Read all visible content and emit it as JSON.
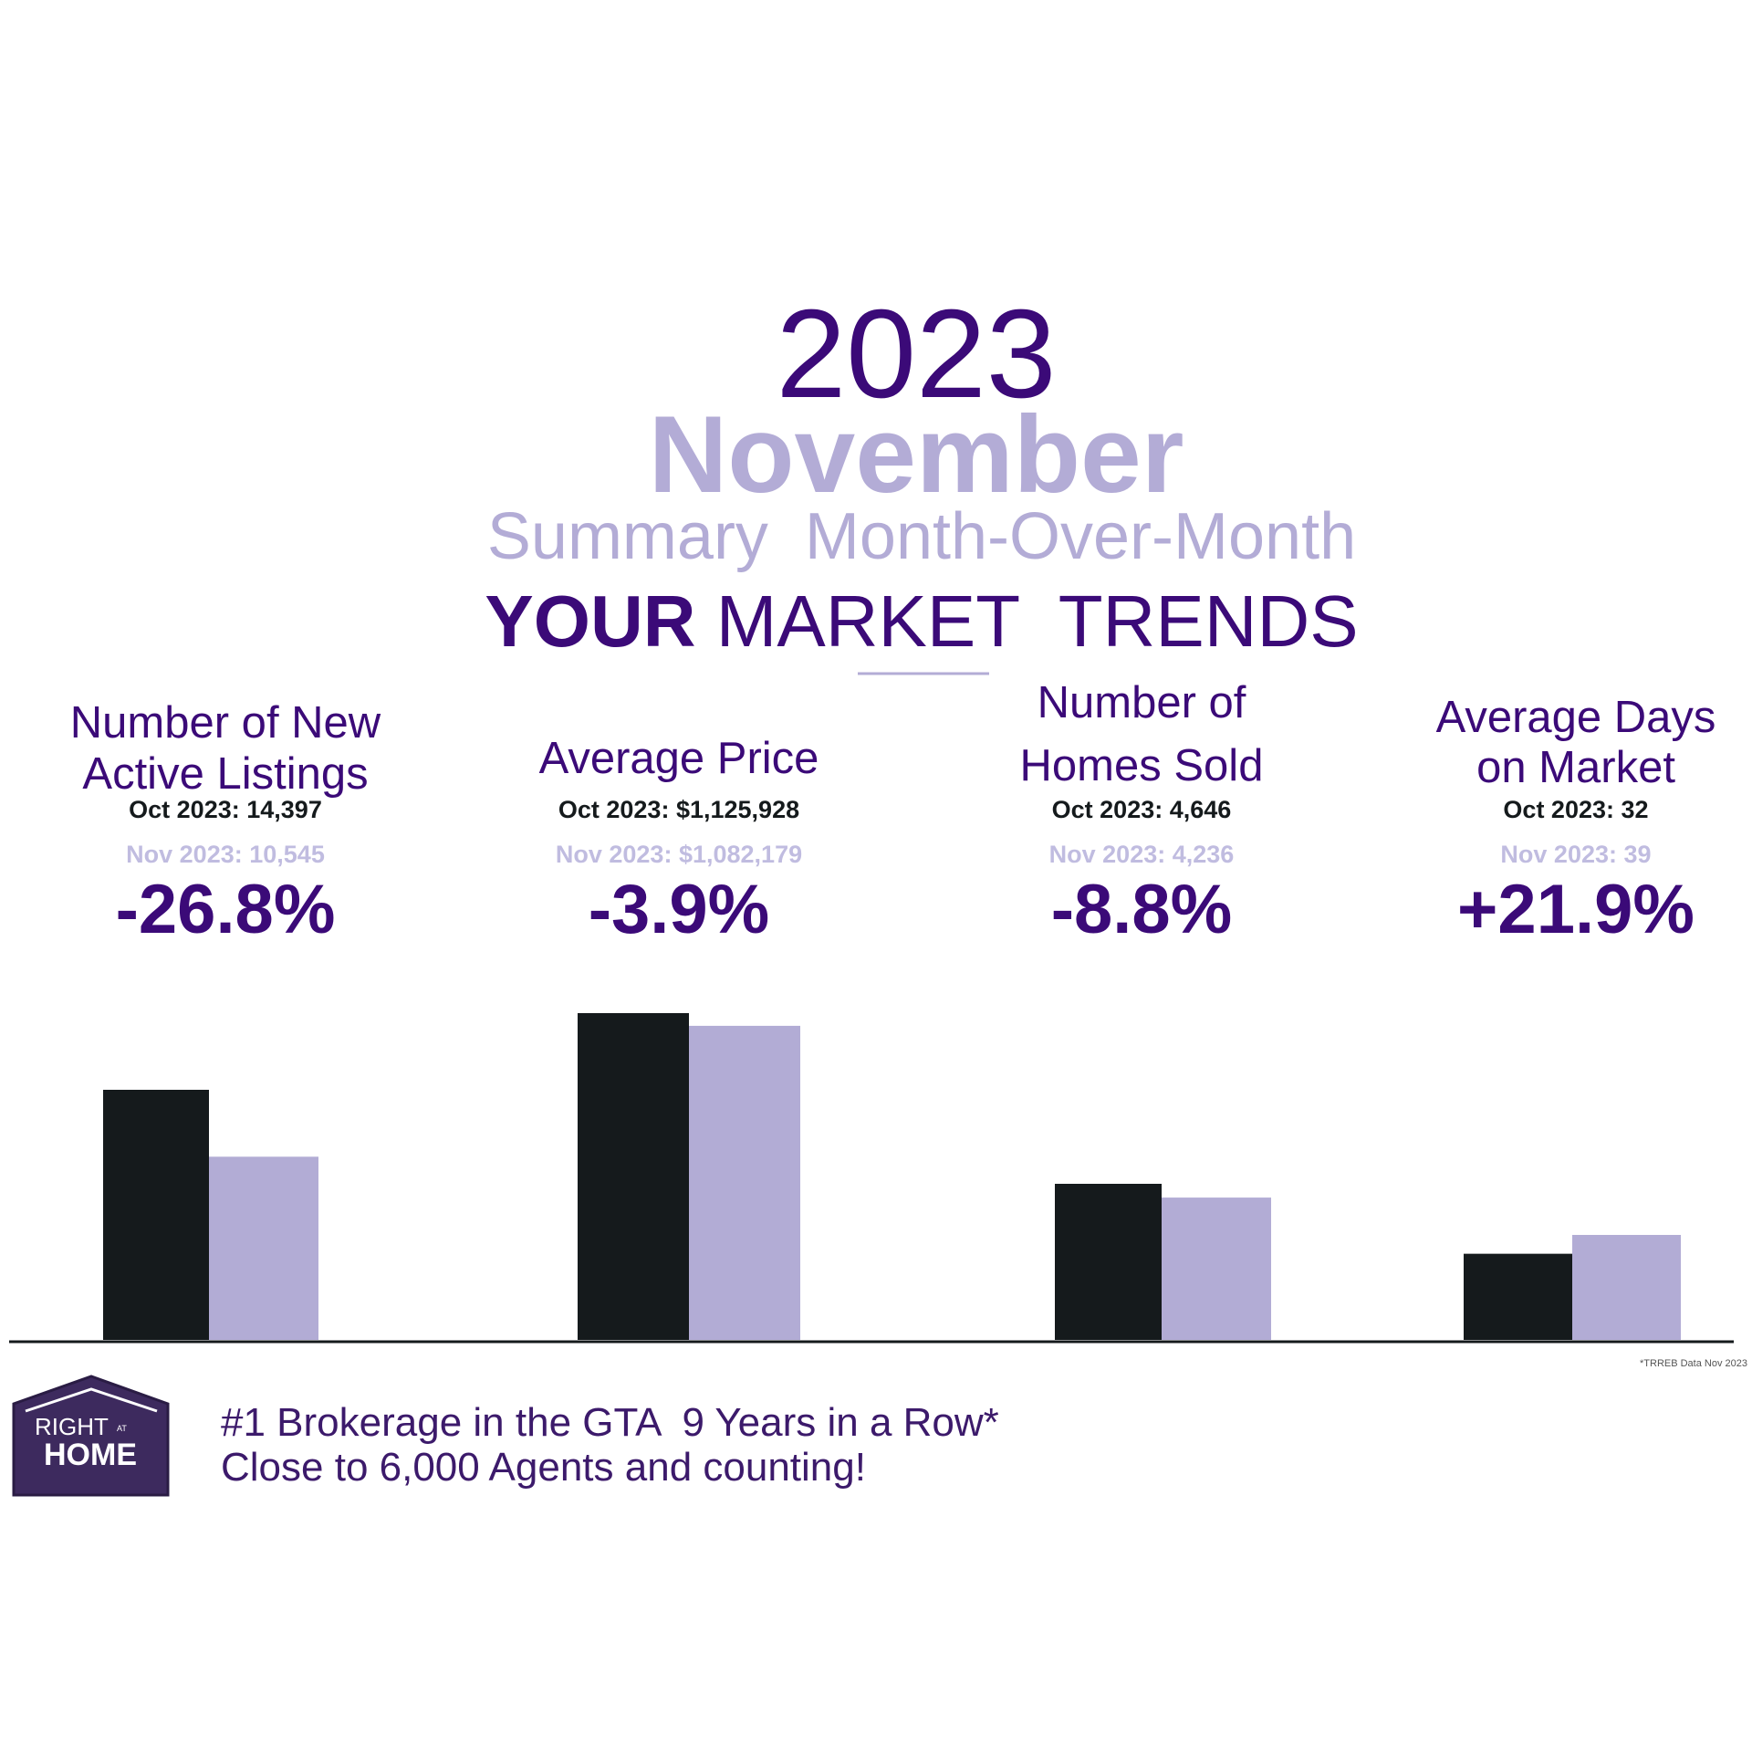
{
  "header": {
    "year": "2023",
    "month": "November",
    "subtitle": "Summary  Month-Over-Month",
    "title_bold": "YOUR",
    "title_rest": "MARKET  TRENDS"
  },
  "metrics": [
    {
      "title": [
        "Number of New",
        "Active Listings"
      ],
      "oct": {
        "label": "Oct 2023:",
        "value": 14397,
        "value_label": "14,397"
      },
      "nov": {
        "label": "Nov 2023:",
        "value": 10545,
        "value_label": "10,545"
      },
      "change": "-26.8%"
    },
    {
      "title": [
        "Average Price"
      ],
      "oct": {
        "label": "Oct 2023:",
        "value": 1125928,
        "value_label": "$1,125,928"
      },
      "nov": {
        "label": "Nov 2023:",
        "value": 1082179,
        "value_label": "$1,082,179"
      },
      "change": "-3.9%"
    },
    {
      "title": [
        "Number of",
        "Homes Sold"
      ],
      "oct": {
        "label": "Oct 2023:",
        "value": 4646,
        "value_label": "4,646"
      },
      "nov": {
        "label": "Nov 2023:",
        "value": 4236,
        "value_label": "4,236"
      },
      "change": "-8.8%"
    },
    {
      "title": [
        "Average Days",
        "on Market"
      ],
      "oct": {
        "label": "Oct 2023:",
        "value": 32,
        "value_label": "32"
      },
      "nov": {
        "label": "Nov 2023:",
        "value": 39,
        "value_label": "39"
      },
      "change": "+21.9%"
    }
  ],
  "footnote": "*TRREB Data Nov 2023",
  "logo": {
    "line1": "RIGHT",
    "line2": "AT",
    "line3": "HOME"
  },
  "footer": [
    "#1 Brokerage in the GTA  9 Years in a Row*",
    "Close to 6,000 Agents and counting!"
  ]
}
